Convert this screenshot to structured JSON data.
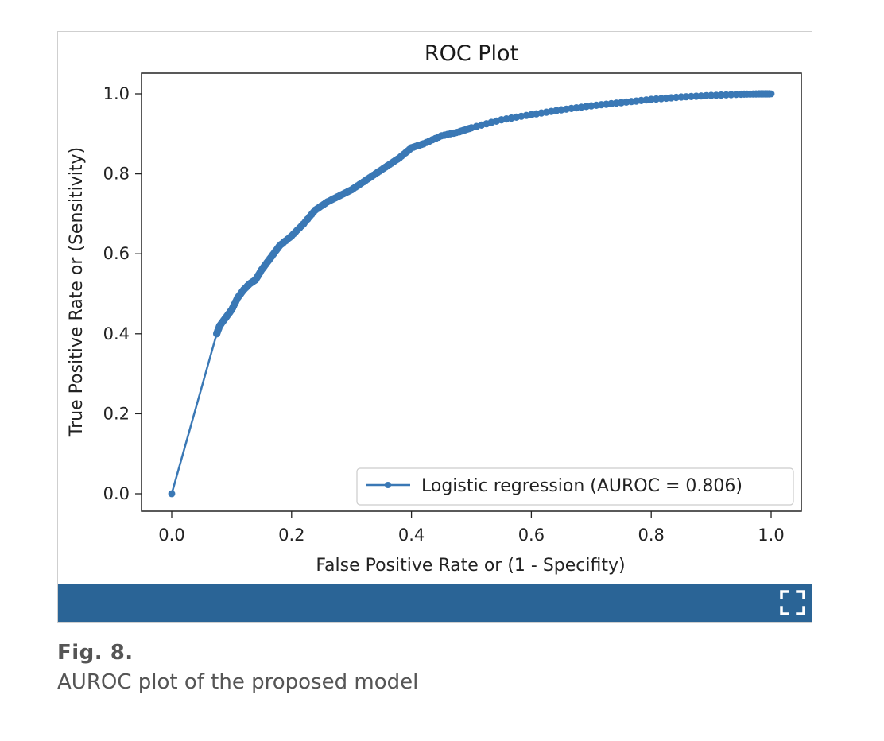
{
  "figure": {
    "label": "Fig. 8.",
    "caption": "AUROC plot of the proposed model",
    "toolbar_color": "#2a6496",
    "expand_icon": "expand-icon"
  },
  "chart_data": {
    "type": "line",
    "title": "ROC Plot",
    "xlabel": "False Positive Rate or (1 - Specifity)",
    "ylabel": "True Positive Rate or (Sensitivity)",
    "xlim": [
      0,
      1
    ],
    "ylim": [
      0,
      1
    ],
    "xticks": [
      "0.0",
      "0.2",
      "0.4",
      "0.6",
      "0.8",
      "1.0"
    ],
    "yticks": [
      "0.0",
      "0.2",
      "0.4",
      "0.6",
      "0.8",
      "1.0"
    ],
    "grid": false,
    "legend_position": "lower-right",
    "series": [
      {
        "name": "Logistic regression (AUROC = 0.806)",
        "color": "#3a78b5",
        "marker": "circle",
        "x": [
          0.0,
          0.075,
          0.08,
          0.09,
          0.1,
          0.11,
          0.12,
          0.13,
          0.14,
          0.15,
          0.16,
          0.17,
          0.18,
          0.2,
          0.22,
          0.24,
          0.26,
          0.28,
          0.3,
          0.32,
          0.34,
          0.36,
          0.38,
          0.4,
          0.42,
          0.45,
          0.48,
          0.5,
          0.55,
          0.6,
          0.65,
          0.7,
          0.75,
          0.8,
          0.85,
          0.9,
          0.95,
          0.98,
          1.0
        ],
        "y": [
          0.0,
          0.4,
          0.42,
          0.44,
          0.46,
          0.49,
          0.51,
          0.525,
          0.535,
          0.56,
          0.58,
          0.6,
          0.62,
          0.645,
          0.675,
          0.71,
          0.73,
          0.745,
          0.76,
          0.78,
          0.8,
          0.82,
          0.84,
          0.865,
          0.875,
          0.895,
          0.905,
          0.915,
          0.935,
          0.948,
          0.96,
          0.97,
          0.978,
          0.986,
          0.992,
          0.996,
          0.999,
          1.0,
          1.0
        ]
      }
    ]
  }
}
